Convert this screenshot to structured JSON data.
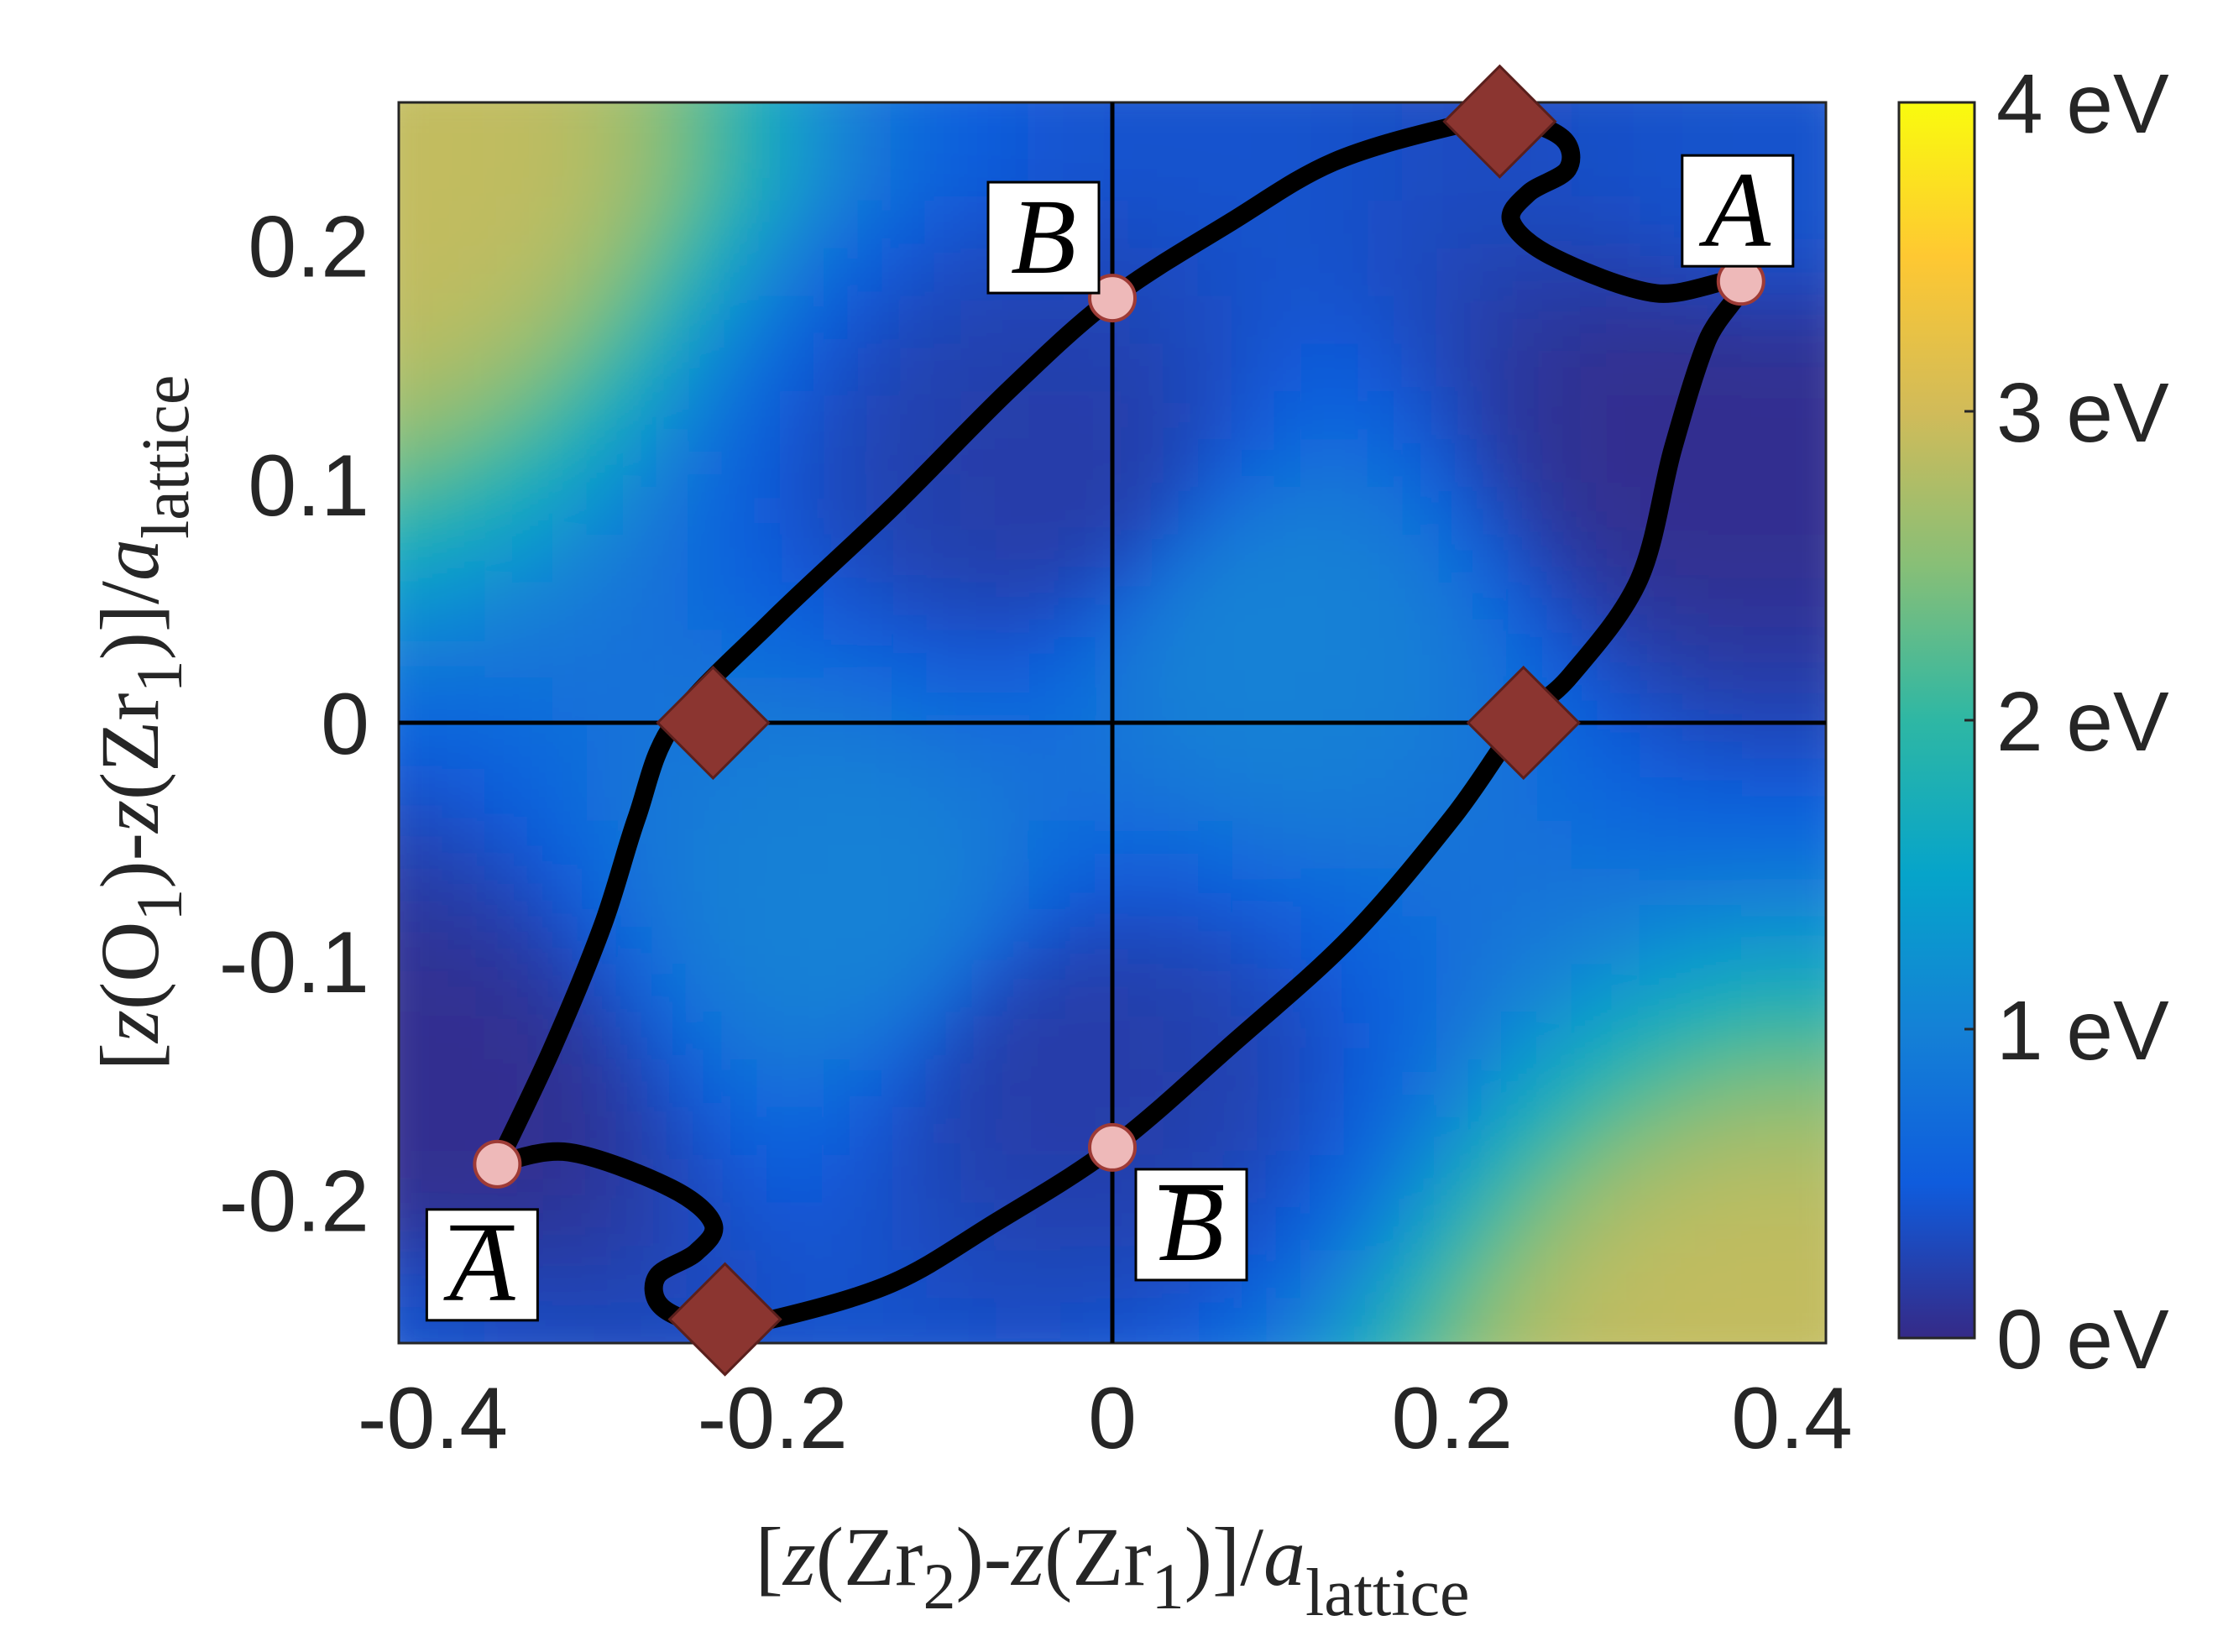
{
  "chart_data": {
    "type": "heatmap",
    "xlim": [
      -0.42,
      0.42
    ],
    "ylim": [
      -0.26,
      0.26
    ],
    "x_ticks": [
      -0.4,
      -0.2,
      0,
      0.2,
      0.4
    ],
    "x_tick_labels": [
      "-0.4",
      "-0.2",
      "0",
      "0.2",
      "0.4"
    ],
    "y_ticks": [
      0.2,
      0.1,
      0,
      -0.1,
      -0.2
    ],
    "y_tick_labels": [
      "0.2",
      "0.1",
      "0",
      "-0.1",
      "-0.2"
    ],
    "colorbar": {
      "range": [
        0,
        4
      ],
      "ticks": [
        4,
        3,
        2,
        1,
        0
      ],
      "tick_labels": [
        "4 eV",
        "3 eV",
        "2 eV",
        "1 eV",
        "0 eV"
      ],
      "colormap": "parula",
      "colors": [
        "#352a87",
        "#0f5cdd",
        "#1481d6",
        "#06a4ca",
        "#2eb7a4",
        "#87bf77",
        "#d1bb59",
        "#fec832",
        "#f9fb0e"
      ]
    },
    "energy_surface": {
      "description_values_eV": [
        {
          "x": -0.42,
          "y": 0.26,
          "value": 2.9
        },
        {
          "x": 0.42,
          "y": -0.26,
          "value": 2.9
        },
        {
          "x": 0.12,
          "y": 0.06,
          "value": 1.0
        },
        {
          "x": -0.12,
          "y": -0.06,
          "value": 1.0
        },
        {
          "x": 0.0,
          "y": 0.12,
          "value": 0.2
        },
        {
          "x": 0.0,
          "y": -0.12,
          "value": 0.2
        },
        {
          "x": 0.37,
          "y": 0.14,
          "value": 0.05
        },
        {
          "x": -0.37,
          "y": -0.14,
          "value": 0.05
        },
        {
          "x": 0.42,
          "y": 0.26,
          "value": 0.4
        },
        {
          "x": -0.42,
          "y": -0.26,
          "value": 0.4
        }
      ]
    },
    "reference_lines": {
      "x": 0,
      "y": 0
    },
    "path": [
      [
        -0.362,
        -0.185
      ],
      [
        -0.33,
        -0.137
      ],
      [
        -0.3,
        -0.085
      ],
      [
        -0.28,
        -0.04
      ],
      [
        -0.258,
        0.0
      ],
      [
        -0.2,
        0.043
      ],
      [
        -0.13,
        0.09
      ],
      [
        -0.06,
        0.14
      ],
      [
        0.0,
        0.178
      ],
      [
        0.07,
        0.21
      ],
      [
        0.13,
        0.235
      ],
      [
        0.2,
        0.25
      ],
      [
        0.235,
        0.253
      ],
      [
        0.265,
        0.245
      ],
      [
        0.268,
        0.232
      ],
      [
        0.245,
        0.222
      ],
      [
        0.235,
        0.21
      ],
      [
        0.26,
        0.195
      ],
      [
        0.32,
        0.18
      ],
      [
        0.37,
        0.185
      ],
      [
        0.35,
        0.16
      ],
      [
        0.33,
        0.115
      ],
      [
        0.31,
        0.06
      ],
      [
        0.27,
        0.02
      ],
      [
        0.24,
        0.0
      ],
      [
        0.2,
        -0.04
      ],
      [
        0.14,
        -0.09
      ],
      [
        0.07,
        -0.135
      ],
      [
        0.0,
        -0.178
      ],
      [
        -0.07,
        -0.21
      ],
      [
        -0.13,
        -0.235
      ],
      [
        -0.2,
        -0.25
      ],
      [
        -0.235,
        -0.253
      ],
      [
        -0.265,
        -0.245
      ],
      [
        -0.268,
        -0.232
      ],
      [
        -0.245,
        -0.222
      ],
      [
        -0.235,
        -0.21
      ],
      [
        -0.26,
        -0.195
      ],
      [
        -0.32,
        -0.18
      ],
      [
        -0.362,
        -0.185
      ]
    ],
    "circle_points": [
      {
        "name": "A",
        "x": 0.37,
        "y": 0.185
      },
      {
        "name": "B",
        "x": 0.0,
        "y": 0.178
      },
      {
        "name": "B-bar",
        "x": 0.0,
        "y": -0.178
      },
      {
        "name": "A-bar",
        "x": -0.362,
        "y": -0.185
      }
    ],
    "diamond_points": [
      {
        "x": 0.228,
        "y": 0.252
      },
      {
        "x": 0.242,
        "y": 0.0
      },
      {
        "x": -0.235,
        "y": 0.0
      },
      {
        "x": -0.228,
        "y": -0.25
      }
    ],
    "point_labels": [
      {
        "text": "A",
        "overbar": false
      },
      {
        "text": "B",
        "overbar": false
      },
      {
        "text": "B",
        "overbar": true
      },
      {
        "text": "A",
        "overbar": true
      }
    ],
    "xlabel": {
      "parts": [
        "[",
        "z",
        "(Zr",
        "2",
        ")-",
        "z",
        "(Zr",
        "1",
        ")]/",
        "a",
        "lattice"
      ]
    },
    "ylabel": {
      "parts": [
        "[",
        "z",
        "(O",
        "1",
        ")-",
        "z",
        "(Zr",
        "1",
        ")]/",
        "a",
        "lattice"
      ]
    }
  }
}
